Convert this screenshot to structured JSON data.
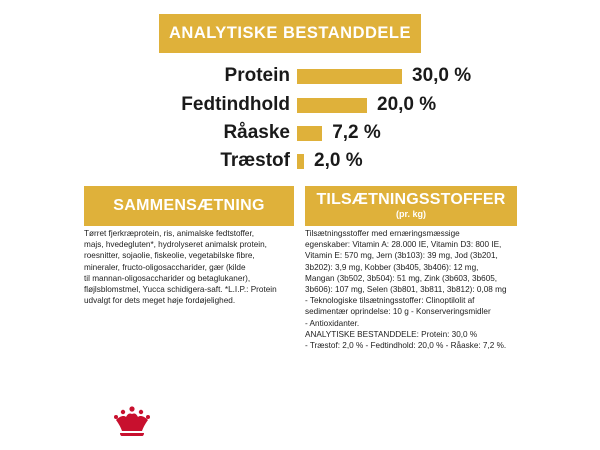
{
  "header": {
    "title": "ANALYTISKE BESTANDDELE"
  },
  "chart_data": {
    "type": "bar",
    "orientation": "horizontal",
    "categories": [
      "Protein",
      "Fedtindhold",
      "Råaske",
      "Træstof"
    ],
    "values": [
      30.0,
      20.0,
      7.2,
      2.0
    ],
    "value_labels": [
      "30,0 %",
      "20,0 %",
      "7,2 %",
      "2,0 %"
    ],
    "unit": "%",
    "bar_color": "#dfb13a",
    "grid": false,
    "legend": "none"
  },
  "composition": {
    "title": "SAMMENSÆTNING",
    "text": "Tørret fjerkræprotein, ris, animalske fedtstoffer,\nmajs, hvedegluten*, hydrolyseret animalsk protein,\nroesnitter, sojaolie, fiskeolie, vegetabilske fibre,\nmineraler, fructo-oligosaccharider, gær (kilde\ntil mannan-oligosaccharider og betaglukaner),\nfløjlsblomstmel, Yucca schidigera-saft. *L.I.P.: Protein\nudvalgt for dets meget høje fordøjelighed."
  },
  "additives": {
    "title": "TILSÆTNINGSSTOFFER",
    "subtitle": "(pr. kg)",
    "text": "Tilsætningsstoffer med ernæringsmæssige\negenskaber: Vitamin A: 28.000 IE, Vitamin D3: 800 IE,\nVitamin E: 570 mg, Jern (3b103): 39 mg, Jod (3b201,\n3b202): 3,9 mg, Kobber (3b405, 3b406): 12 mg,\nMangan (3b502, 3b504): 51 mg, Zink (3b603, 3b605,\n3b606): 107 mg, Selen (3b801, 3b811, 3b812): 0,08 mg\n- Teknologiske tilsætningsstoffer: Clinoptilolit af\nsedimentær oprindelse: 10 g - Konserveringsmidler\n- Antioxidanter.\nANALYTISKE BESTANDDELE: Protein: 30,0 %\n- Træstof: 2,0 % - Fedtindhold: 20,0 % - Råaske: 7,2 %."
  },
  "footer": {
    "logo_icon": "royal-crown-icon",
    "logo_color": "#c8102e"
  }
}
